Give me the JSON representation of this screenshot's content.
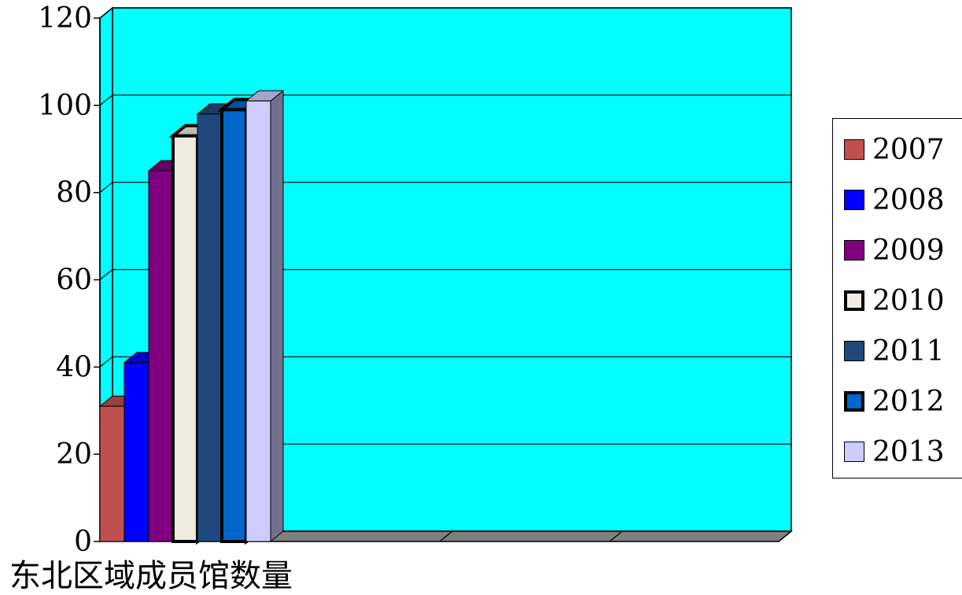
{
  "chart_data": {
    "type": "bar",
    "categories": [
      "东北区域成员馆数量"
    ],
    "series": [
      {
        "name": "2007",
        "values": [
          31
        ],
        "color": "#c0504d"
      },
      {
        "name": "2008",
        "values": [
          41
        ],
        "color": "#0000ff"
      },
      {
        "name": "2009",
        "values": [
          85
        ],
        "color": "#800080"
      },
      {
        "name": "2010",
        "values": [
          93
        ],
        "color": "#efebdf"
      },
      {
        "name": "2011",
        "values": [
          98
        ],
        "color": "#1f497d"
      },
      {
        "name": "2012",
        "values": [
          99
        ],
        "color": "#0066cc"
      },
      {
        "name": "2013",
        "values": [
          101
        ],
        "color": "#ccccff"
      }
    ],
    "ylim": [
      0,
      120
    ],
    "yticks": [
      "0",
      "20",
      "40",
      "60",
      "80",
      "100",
      "120"
    ],
    "grid": true,
    "legend_position": "right",
    "plot_background": "#00ffff",
    "view": "3d-clustered-column"
  }
}
